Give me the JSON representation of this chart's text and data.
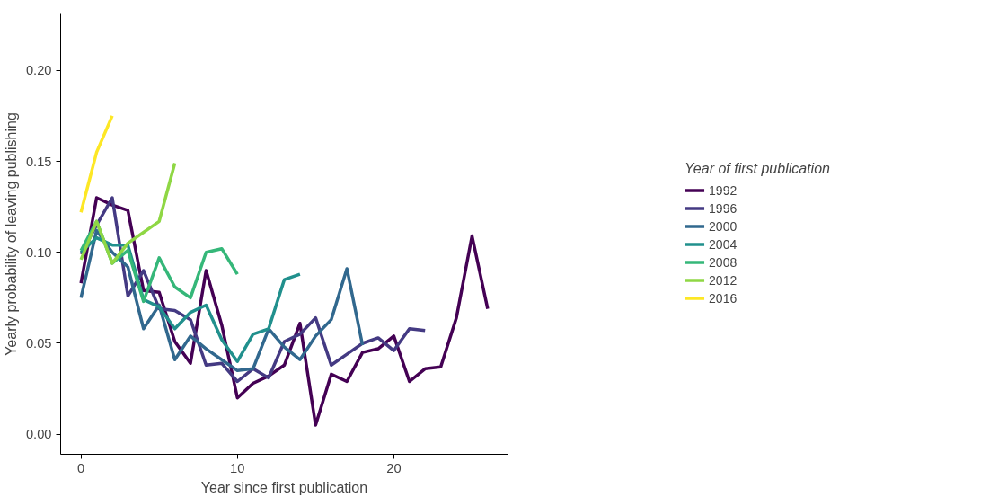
{
  "chart_data": {
    "type": "line",
    "xlabel": "Year since first publication",
    "ylabel": "Yearly probability of leaving publishing",
    "legend_title": "Year of first publication",
    "legend": "right",
    "grid": false,
    "line_style": "solid",
    "xlim": [
      -1.3,
      27.3
    ],
    "ylim": [
      -0.011,
      0.231
    ],
    "xticks": [
      0,
      10,
      20
    ],
    "yticks": [
      {
        "value": 0,
        "label": "0.00"
      },
      {
        "value": 0.05,
        "label": "0.05"
      },
      {
        "value": 0.1,
        "label": "0.10"
      },
      {
        "value": 0.15,
        "label": "0.15"
      },
      {
        "value": 0.2,
        "label": "0.20"
      }
    ],
    "series": [
      {
        "name": "1992",
        "color": "#440154",
        "x": [
          0,
          1,
          2,
          3,
          4,
          5,
          6,
          7,
          8,
          9,
          10,
          11,
          12,
          13,
          14,
          15,
          16,
          17,
          18,
          19,
          20,
          21,
          22,
          23,
          24,
          25,
          26
        ],
        "values": [
          0.083,
          0.13,
          0.126,
          0.123,
          0.079,
          0.078,
          0.051,
          0.039,
          0.09,
          0.06,
          0.02,
          0.028,
          0.032,
          0.038,
          0.061,
          0.005,
          0.033,
          0.029,
          0.045,
          0.047,
          0.054,
          0.029,
          0.036,
          0.037,
          0.064,
          0.109,
          0.069
        ]
      },
      {
        "name": "1996",
        "color": "#443a83",
        "x": [
          0,
          1,
          2,
          3,
          4,
          5,
          6,
          7,
          8,
          9,
          10,
          11,
          12,
          13,
          14,
          15,
          16,
          17,
          18,
          19,
          20,
          21,
          22
        ],
        "values": [
          0.099,
          0.115,
          0.13,
          0.076,
          0.09,
          0.069,
          0.068,
          0.063,
          0.038,
          0.039,
          0.029,
          0.036,
          0.031,
          0.051,
          0.055,
          0.064,
          0.038,
          0.044,
          0.05,
          0.053,
          0.046,
          0.058,
          0.057
        ]
      },
      {
        "name": "2000",
        "color": "#31688e",
        "x": [
          0,
          1,
          2,
          3,
          4,
          5,
          6,
          7,
          8,
          9,
          10,
          11,
          12,
          13,
          14,
          15,
          16,
          17,
          18
        ],
        "values": [
          0.075,
          0.112,
          0.1,
          0.092,
          0.058,
          0.071,
          0.041,
          0.054,
          0.047,
          0.041,
          0.035,
          0.036,
          0.058,
          0.048,
          0.041,
          0.054,
          0.063,
          0.091,
          0.049
        ]
      },
      {
        "name": "2004",
        "color": "#21908d",
        "x": [
          0,
          1,
          2,
          3,
          4,
          5,
          6,
          7,
          8,
          9,
          10,
          11,
          12,
          13,
          14
        ],
        "values": [
          0.1,
          0.108,
          0.104,
          0.104,
          0.074,
          0.07,
          0.058,
          0.067,
          0.071,
          0.052,
          0.04,
          0.055,
          0.058,
          0.085,
          0.088
        ]
      },
      {
        "name": "2008",
        "color": "#35b779",
        "x": [
          0,
          1,
          2,
          3,
          4,
          5,
          6,
          7,
          8,
          9,
          10
        ],
        "values": [
          0.101,
          0.117,
          0.094,
          0.101,
          0.073,
          0.097,
          0.081,
          0.075,
          0.1,
          0.102,
          0.088
        ]
      },
      {
        "name": "2012",
        "color": "#8fd744",
        "x": [
          0,
          1,
          2,
          3,
          4,
          5,
          6
        ],
        "values": [
          0.096,
          0.117,
          0.094,
          0.105,
          0.111,
          0.117,
          0.149
        ]
      },
      {
        "name": "2016",
        "color": "#fde725",
        "x": [
          0,
          1,
          2
        ],
        "values": [
          0.122,
          0.155,
          0.175
        ]
      }
    ]
  }
}
